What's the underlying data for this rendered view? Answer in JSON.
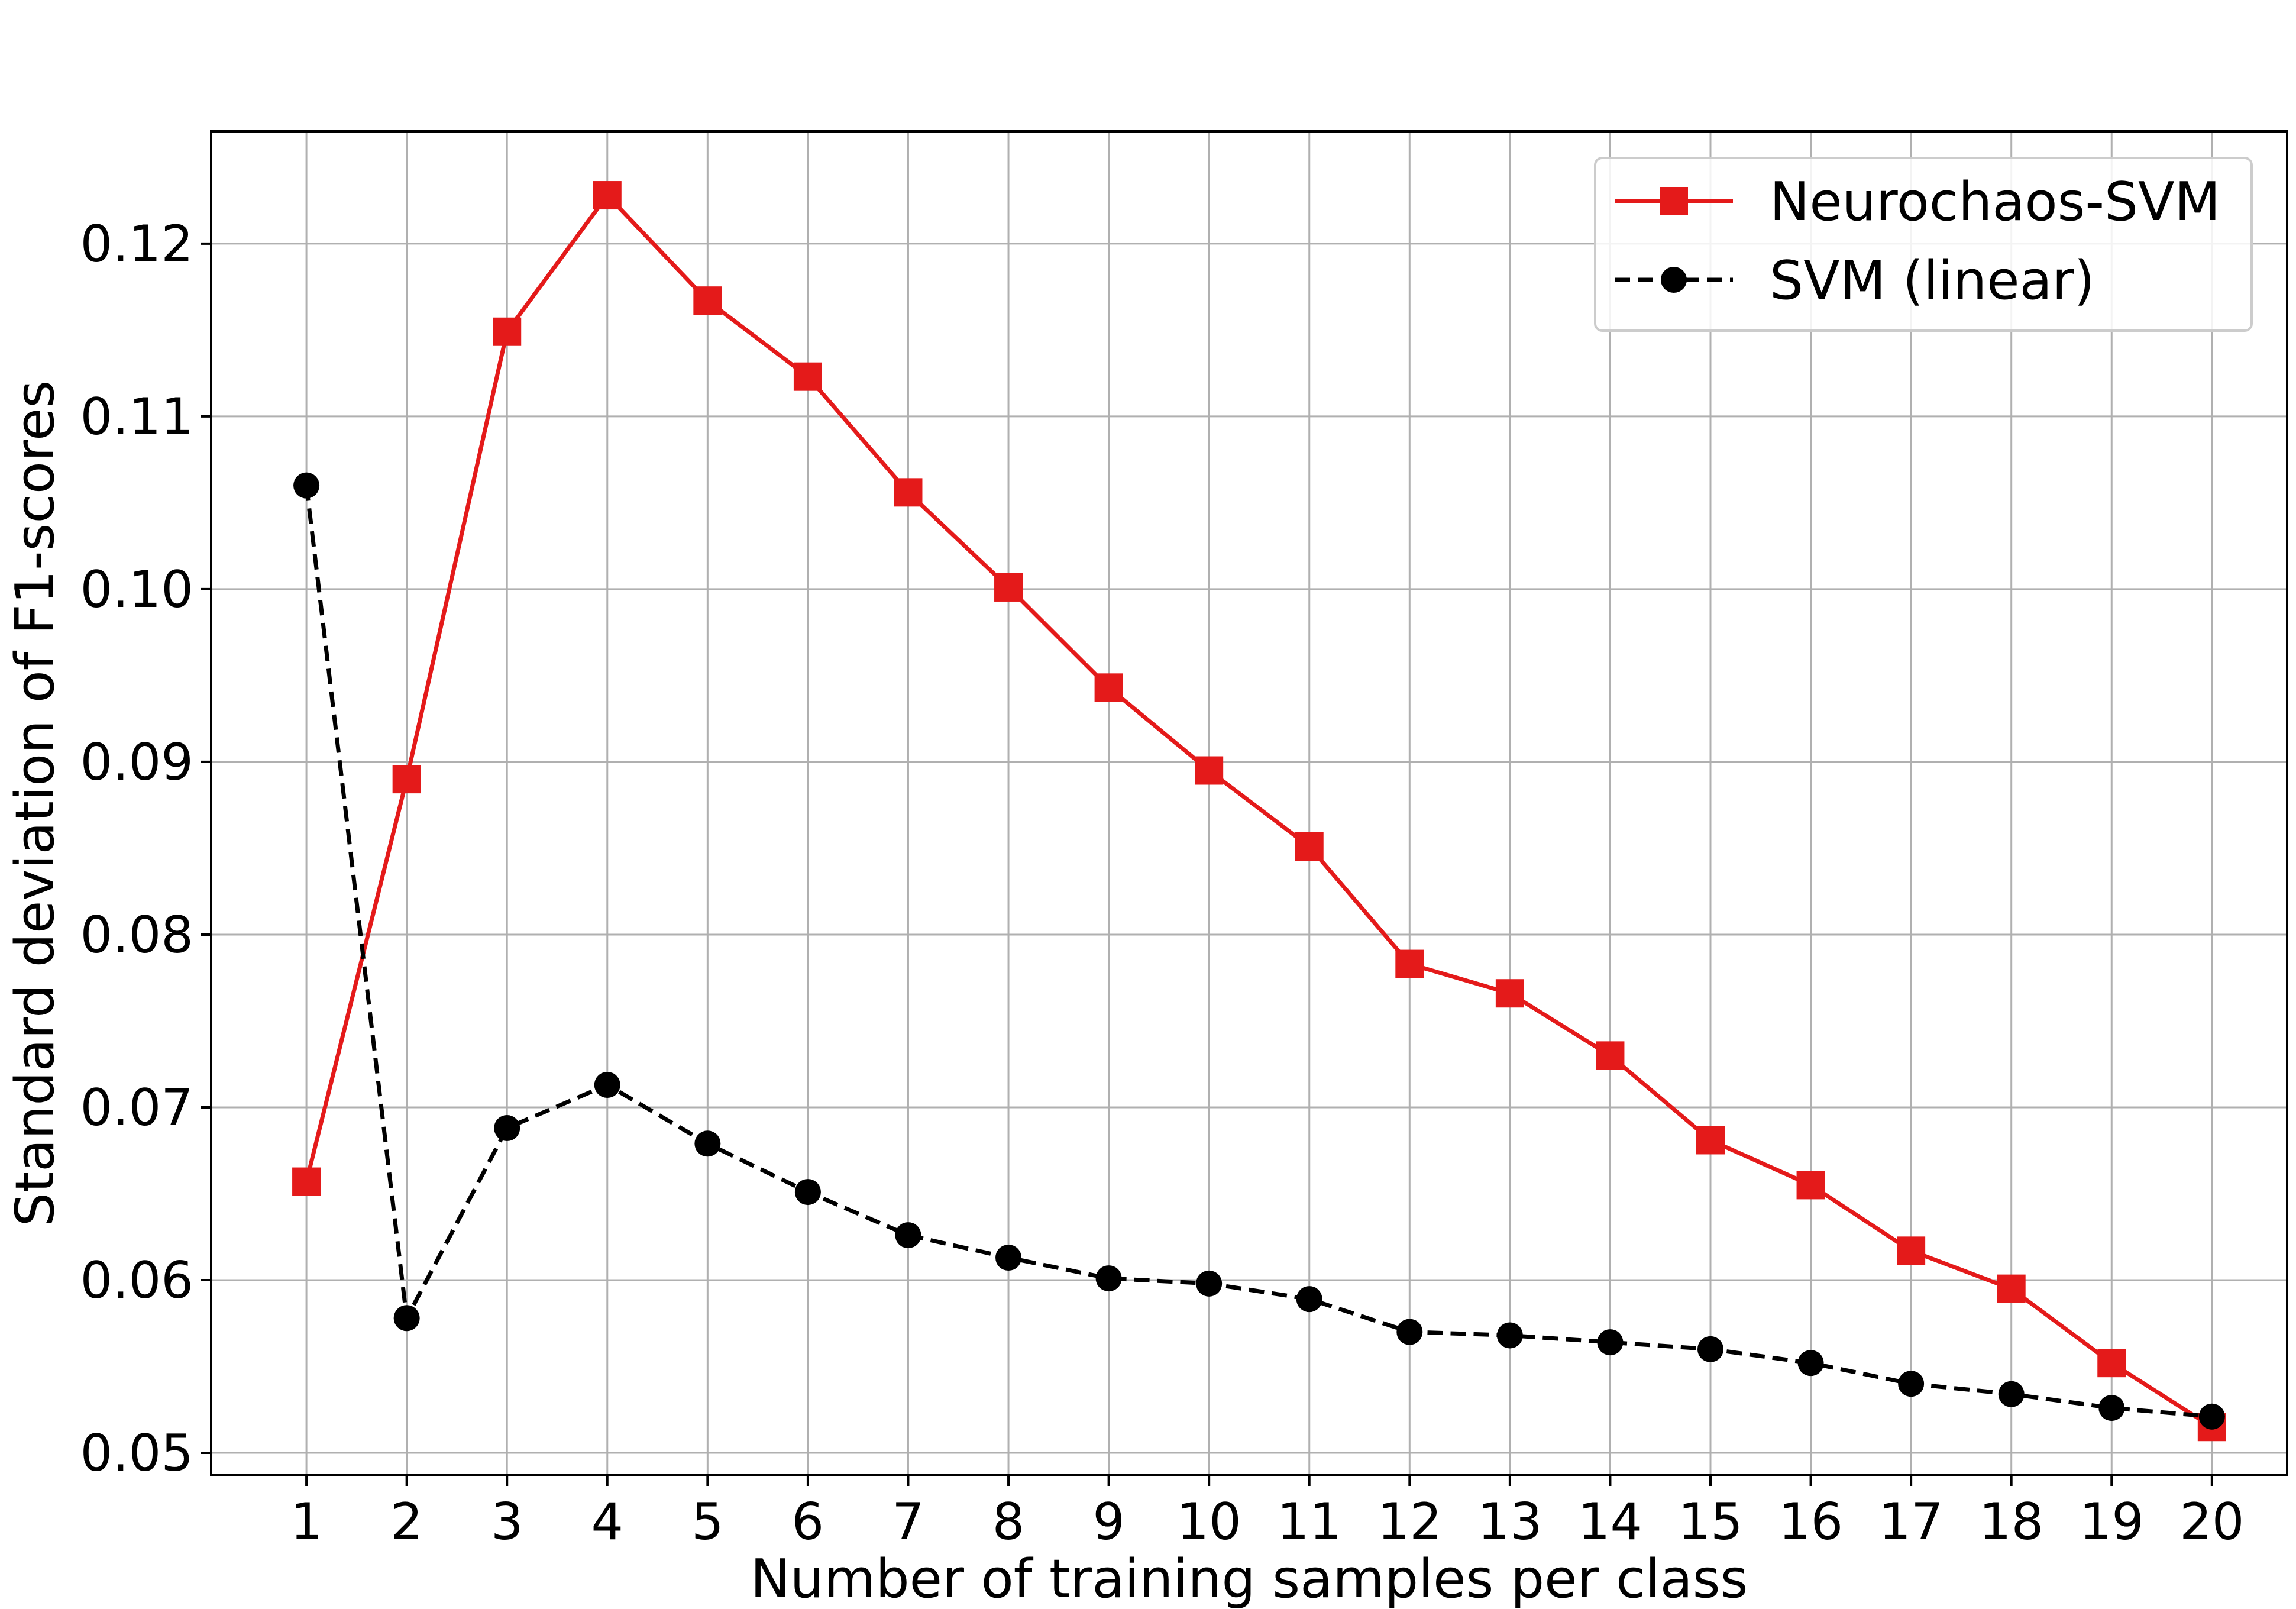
{
  "chart_data": {
    "type": "line",
    "title": "",
    "xlabel": "Number of training samples per class",
    "ylabel": "Standard deviation of F1-scores",
    "x": [
      1,
      2,
      3,
      4,
      5,
      6,
      7,
      8,
      9,
      10,
      11,
      12,
      13,
      14,
      15,
      16,
      17,
      18,
      19,
      20
    ],
    "xticks": [
      "1",
      "2",
      "3",
      "4",
      "5",
      "6",
      "7",
      "8",
      "9",
      "10",
      "11",
      "12",
      "13",
      "14",
      "15",
      "16",
      "17",
      "18",
      "19",
      "20"
    ],
    "yticks": [
      "0.05",
      "0.06",
      "0.07",
      "0.08",
      "0.09",
      "0.10",
      "0.11",
      "0.12"
    ],
    "xlim": [
      0.05,
      20.75
    ],
    "ylim": [
      0.0487,
      0.1265
    ],
    "grid": true,
    "legend_position": "top-right",
    "series": [
      {
        "name": "Neurochaos-SVM",
        "color": "#e41a1a",
        "marker": "square",
        "line_style": "solid",
        "values": [
          0.0657,
          0.089,
          0.1149,
          0.1228,
          0.1167,
          0.1123,
          0.1056,
          0.1001,
          0.0943,
          0.0895,
          0.0851,
          0.0783,
          0.0766,
          0.073,
          0.0681,
          0.0655,
          0.0617,
          0.0595,
          0.0552,
          0.0515
        ]
      },
      {
        "name": "SVM (linear)",
        "color": "#000000",
        "marker": "circle",
        "line_style": "dashed",
        "values": [
          0.106,
          0.0578,
          0.0688,
          0.0713,
          0.0679,
          0.0651,
          0.0626,
          0.0613,
          0.0601,
          0.0598,
          0.0589,
          0.057,
          0.0568,
          0.0564,
          0.056,
          0.0552,
          0.054,
          0.0534,
          0.0526,
          0.0521
        ]
      }
    ]
  }
}
